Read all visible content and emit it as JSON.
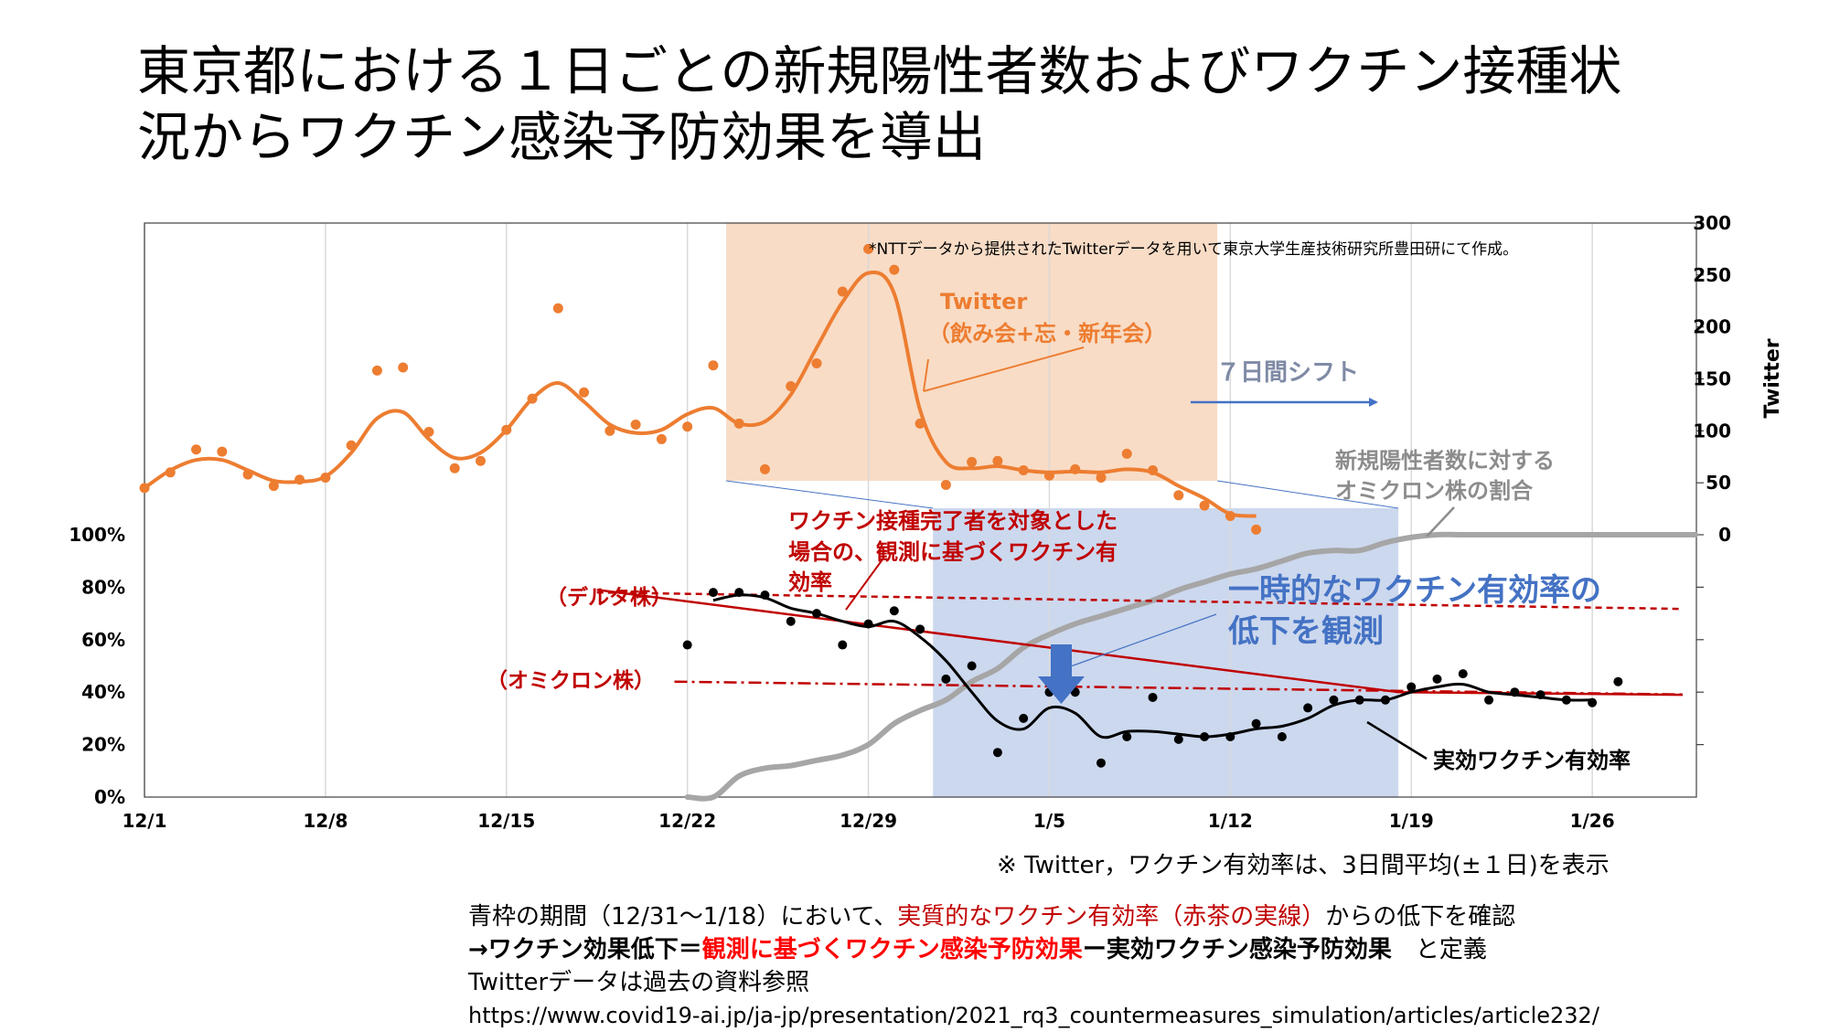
{
  "title_line1": "東京都における１日ごとの新規陽性者数およびワクチン接種状",
  "title_line2": "況からワクチン感染予防効果を導出",
  "chart_data": {
    "type": "line",
    "x_ticks": [
      "12/1",
      "12/8",
      "12/15",
      "12/22",
      "12/29",
      "1/5",
      "1/12",
      "1/19",
      "1/26"
    ],
    "x_dates": [
      "12/1",
      "12/2",
      "12/3",
      "12/4",
      "12/5",
      "12/6",
      "12/7",
      "12/8",
      "12/9",
      "12/10",
      "12/11",
      "12/12",
      "12/13",
      "12/14",
      "12/15",
      "12/16",
      "12/17",
      "12/18",
      "12/19",
      "12/20",
      "12/21",
      "12/22",
      "12/23",
      "12/24",
      "12/25",
      "12/26",
      "12/27",
      "12/28",
      "12/29",
      "12/30",
      "12/31",
      "1/1",
      "1/2",
      "1/3",
      "1/4",
      "1/5",
      "1/6",
      "1/7",
      "1/8",
      "1/9",
      "1/10",
      "1/11",
      "1/12",
      "1/13",
      "1/14",
      "1/15",
      "1/16",
      "1/17",
      "1/18",
      "1/19",
      "1/20",
      "1/21",
      "1/22",
      "1/23",
      "1/24",
      "1/25",
      "1/26",
      "1/27",
      "1/28",
      "1/29",
      "1/30"
    ],
    "y_left_ticks": [
      "0%",
      "20%",
      "40%",
      "60%",
      "80%",
      "100%"
    ],
    "y_left_range": [
      0,
      100
    ],
    "y_right_ticks": [
      "0",
      "50",
      "100",
      "150",
      "200",
      "250",
      "300"
    ],
    "y_right_range": [
      0,
      300
    ],
    "y_right_label": "Twitter",
    "series": [
      {
        "name": "Twitter (飲み会+忘・新年会)",
        "axis": "right",
        "color": "#ed7d31",
        "points": [
          45,
          60,
          82,
          80,
          58,
          47,
          53,
          55,
          86,
          158,
          161,
          99,
          64,
          71,
          101,
          131,
          218,
          137,
          100,
          106,
          92,
          104,
          163,
          107,
          63,
          143,
          165,
          234,
          275,
          255,
          107,
          48,
          70,
          71,
          62,
          57,
          63,
          55,
          78,
          62,
          38,
          28,
          18,
          5
        ],
        "smooth": [
          45,
          62,
          72,
          72,
          62,
          52,
          51,
          56,
          79,
          112,
          118,
          92,
          74,
          79,
          101,
          131,
          146,
          128,
          106,
          98,
          101,
          116,
          122,
          107,
          109,
          135,
          180,
          224,
          252,
          232,
          120,
          70,
          64,
          66,
          62,
          60,
          61,
          60,
          63,
          60,
          47,
          35,
          20,
          18
        ]
      },
      {
        "name": "新規陽性者数に対するオミクロン株の割合",
        "axis": "left",
        "color": "#a6a6a6",
        "x_start": 21,
        "values": [
          0,
          0,
          8,
          11,
          12,
          14,
          16,
          20,
          28,
          33,
          37,
          44,
          49,
          57,
          62,
          66,
          69,
          72,
          75,
          79,
          82,
          85,
          87,
          90,
          93,
          94,
          94,
          97,
          99,
          100,
          100,
          100,
          100,
          100,
          100,
          100,
          100,
          100,
          100,
          100
        ]
      },
      {
        "name": "実効ワクチン有効率",
        "axis": "left",
        "color": "#000000",
        "x_start": 21,
        "points": [
          58,
          78,
          78,
          77,
          67,
          70,
          58,
          66,
          71,
          64,
          45,
          50,
          17,
          30,
          40,
          40,
          13,
          23,
          38,
          22,
          23,
          23,
          28,
          23,
          34,
          37,
          37,
          37,
          42,
          45,
          47,
          37,
          40,
          39,
          37,
          36,
          44
        ],
        "smooth": [
          null,
          75,
          77,
          76,
          72,
          70,
          67,
          65,
          67,
          61,
          52,
          40,
          29,
          26,
          34,
          32,
          23,
          25,
          25,
          24,
          23,
          24,
          26,
          27,
          30,
          35,
          37,
          37,
          40,
          42,
          43,
          40,
          39,
          38,
          37,
          37,
          null
        ]
      },
      {
        "name": "観測に基づくワクチン有効率",
        "axis": "left",
        "color": "#c00000",
        "points_xy": [
          [
            17.5,
            79
          ],
          [
            48.5,
            40
          ],
          [
            59.5,
            39
          ]
        ]
      },
      {
        "name": "(デルタ株)",
        "axis": "left",
        "color": "#c00000",
        "style": "dashed",
        "value": 78
      },
      {
        "name": "(オミクロン株)",
        "axis": "left",
        "color": "#c00000",
        "style": "dashdot",
        "value": 44
      }
    ],
    "annotations": {
      "source_note": "*NTTデータから提供されたTwitterデータを用いて東京大学生産技術研究所豊田研にて作成。",
      "twitter_label_1": "Twitter",
      "twitter_label_2": "（飲み会+忘・新年会）",
      "shift_label": "７日間シフト",
      "omicron_ratio_1": "新規陽性者数に対する",
      "omicron_ratio_2": "オミクロン株の割合",
      "observed_1": "ワクチン接種完了者を対象とした",
      "observed_2": "場合の、観測に基づくワクチン有",
      "observed_3": "効率",
      "delta": "（デルタ株）",
      "omicron": "（オミクロン株）",
      "drop_1": "一時的なワクチン有効率の",
      "drop_2": "低下を観測",
      "effective": "実効ワクチン有効率"
    },
    "highlight_ranges": {
      "orange_x": [
        22.5,
        41.5
      ],
      "blue_x": [
        30.5,
        48.5
      ]
    }
  },
  "footnote": "※ Twitter，ワクチン有効率は、3日間平均(±１日)を表示",
  "notes": {
    "line1_a": "青枠の期間（12/31～1/18）において、",
    "line1_b": "実質的なワクチン有効率（赤茶の実線）",
    "line1_c": "からの低下を確認",
    "line2_a": "→ワクチン効果低下＝",
    "line2_b": "観測に基づくワクチン感染予防効果",
    "line2_c": "ー実効ワクチン感染予防効果　",
    "line2_d": "と定義",
    "line3": "Twitterデータは過去の資料参照",
    "line4": "https://www.covid19-ai.jp/ja-jp/presentation/2021_rq3_countermeasures_simulation/articles/article232/"
  },
  "colors": {
    "orange": "#ed7d31",
    "orange_band": "#f8dcc6",
    "blue_band": "#ccd8ee",
    "red": "#c00000",
    "blue_text": "#4472c4",
    "gray": "#a6a6a6"
  }
}
